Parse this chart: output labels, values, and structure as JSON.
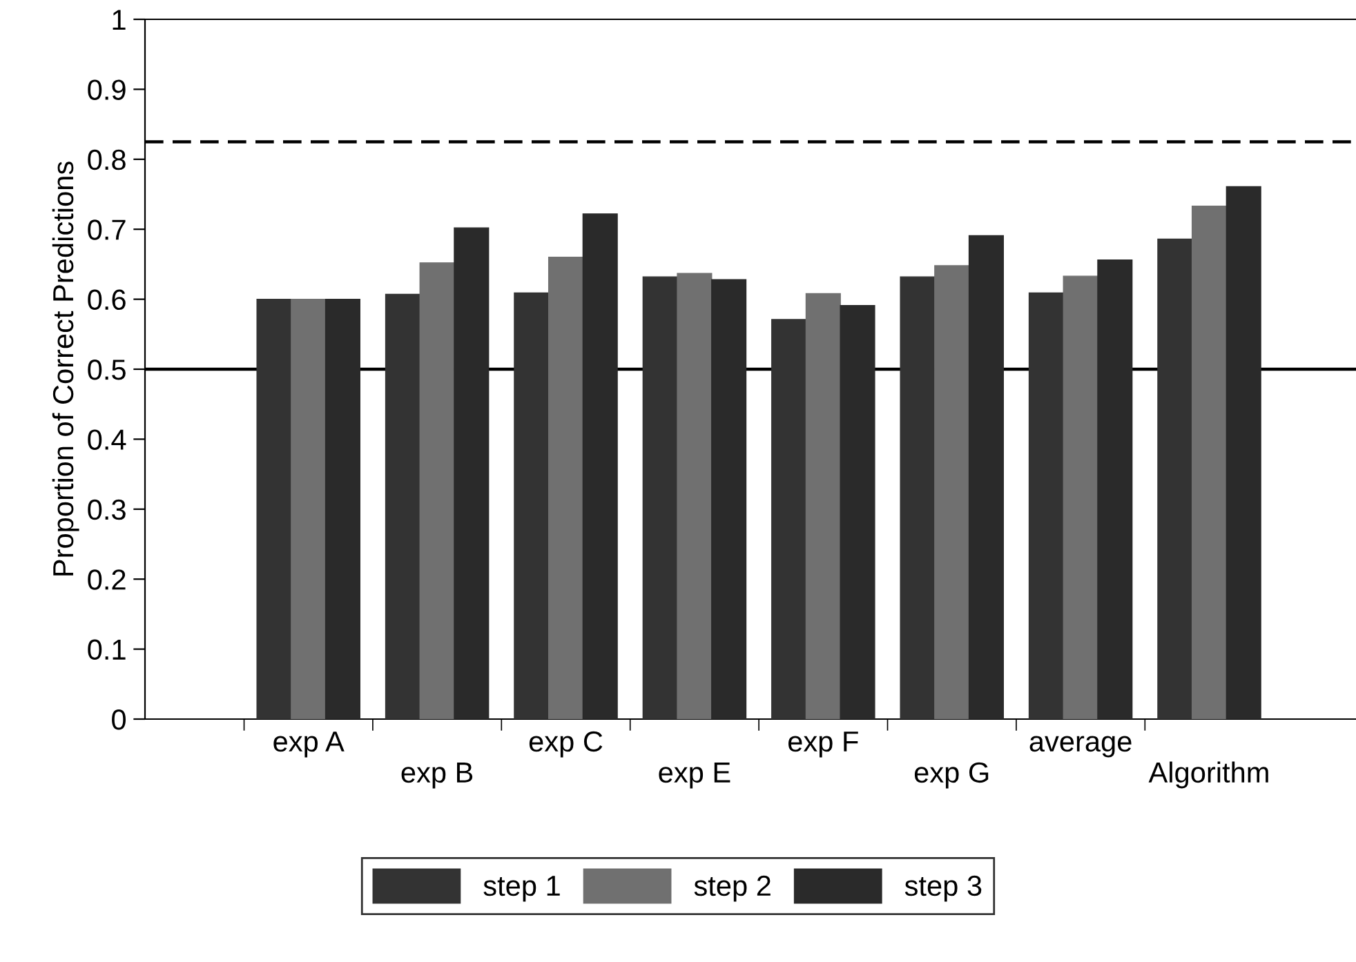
{
  "chart_data": {
    "type": "bar",
    "ylabel": "Proportion of Correct Predictions",
    "categories": [
      "exp A",
      "exp B",
      "exp C",
      "exp E",
      "exp F",
      "exp G",
      "average",
      "Algorithm"
    ],
    "series": [
      {
        "name": "step 1",
        "color": "#333333",
        "values": [
          0.6,
          0.607,
          0.609,
          0.632,
          0.571,
          0.632,
          0.609,
          0.686
        ]
      },
      {
        "name": "step 2",
        "color": "#707070",
        "values": [
          0.6,
          0.652,
          0.66,
          0.637,
          0.608,
          0.648,
          0.633,
          0.733
        ]
      },
      {
        "name": "step 3",
        "color": "#2a2a2a",
        "values": [
          0.6,
          0.702,
          0.722,
          0.628,
          0.591,
          0.691,
          0.656,
          0.761
        ]
      }
    ],
    "ylim": [
      0,
      1
    ],
    "yticks": [
      0,
      0.1,
      0.2,
      0.3,
      0.4,
      0.5,
      0.6,
      0.7,
      0.8,
      0.9,
      1
    ],
    "ref_lines": [
      {
        "axis": "y",
        "value": 0.5,
        "color": "#000000",
        "line_style": "solid"
      },
      {
        "axis": "y",
        "value": 0.825,
        "color": "#000000",
        "line_style": "dashed"
      }
    ],
    "grid": false,
    "legend": "bottom"
  }
}
